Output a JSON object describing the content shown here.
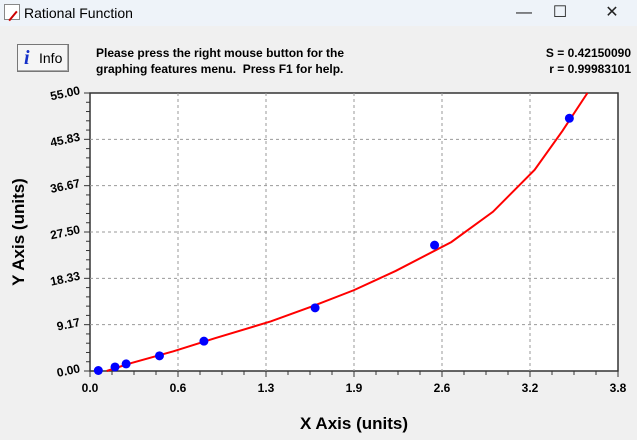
{
  "window": {
    "title": "Rational Function",
    "minimize": "—",
    "maximize": "☐",
    "close": "✕"
  },
  "toolbar": {
    "info_label": "Info",
    "info_icon": "info-icon",
    "message_line1": "Please press the right mouse button for the",
    "message_line2": "graphing features menu.  Press F1 for help.",
    "stat_s": "S = 0.42150090",
    "stat_r": "r = 0.99983101"
  },
  "chart_data": {
    "type": "scatter",
    "xlabel": "X Axis (units)",
    "ylabel": "Y Axis (units)",
    "xlim": [
      0,
      3.8
    ],
    "ylim": [
      0,
      55
    ],
    "xticks": [
      "0.0",
      "0.6",
      "1.3",
      "1.9",
      "2.6",
      "3.2",
      "3.8"
    ],
    "yticks": [
      "0.00",
      "9.17",
      "18.33",
      "27.50",
      "36.67",
      "45.83",
      "55.00"
    ],
    "grid": true,
    "colors": {
      "points": "#0000ff",
      "fit": "#ff0000"
    },
    "points": {
      "x": [
        0.06,
        0.18,
        0.26,
        0.5,
        0.82,
        1.62,
        2.48,
        3.45
      ],
      "y": [
        0.1,
        0.8,
        1.4,
        3.0,
        5.9,
        12.5,
        24.9,
        50.0
      ]
    },
    "fit_curve": {
      "x": [
        0.12,
        0.3,
        0.6,
        0.9,
        1.3,
        1.6,
        1.9,
        2.2,
        2.6,
        2.9,
        3.2,
        3.4,
        3.58
      ],
      "y": [
        0,
        1.6,
        3.9,
        6.5,
        9.8,
        12.8,
        16.0,
        19.8,
        25.5,
        31.5,
        39.8,
        47.5,
        55
      ]
    }
  }
}
